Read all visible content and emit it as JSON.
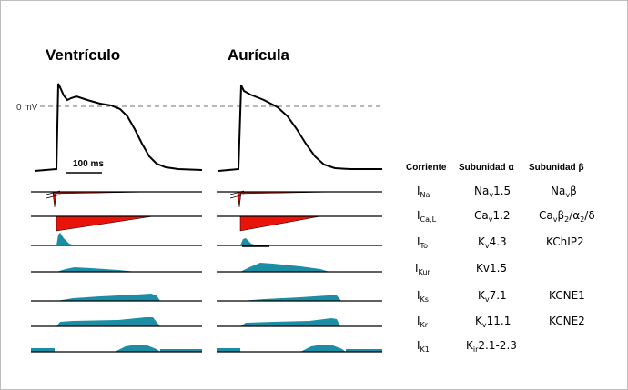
{
  "titles": {
    "left": "Ventrículo",
    "right": "Aurícula"
  },
  "zero_label": "0 mV",
  "scale_label": "100 ms",
  "table_headers": {
    "current": "Corriente",
    "alpha": "Subunidad α",
    "beta": "Subunidad β"
  },
  "rows": [
    {
      "cur_main": "I",
      "cur_sub": "Na",
      "alpha_main": "Na",
      "alpha_sub": "v",
      "alpha_rest": "1.5",
      "beta": "Navβ"
    },
    {
      "cur_main": "I",
      "cur_sub": "Ca,L",
      "alpha_main": "Ca",
      "alpha_sub": "v",
      "alpha_rest": "1.2",
      "beta": "Cavβ2/α2/δ"
    },
    {
      "cur_main": "I",
      "cur_sub": "To",
      "alpha_main": "K",
      "alpha_sub": "v",
      "alpha_rest": "4.3",
      "beta": "KChIP2"
    },
    {
      "cur_main": "I",
      "cur_sub": "Kur",
      "alpha_main": "Kv",
      "alpha_sub": "",
      "alpha_rest": "1.5",
      "beta": ""
    },
    {
      "cur_main": "I",
      "cur_sub": "Ks",
      "alpha_main": "K",
      "alpha_sub": "v",
      "alpha_rest": "7.1",
      "beta": "KCNE1"
    },
    {
      "cur_main": "I",
      "cur_sub": "Kr",
      "alpha_main": "K",
      "alpha_sub": "v",
      "alpha_rest": "11.1",
      "beta": "KCNE2"
    },
    {
      "cur_main": "I",
      "cur_sub": "K1",
      "alpha_main": "K",
      "alpha_sub": "ir",
      "alpha_rest": "2.1-2.3",
      "beta": ""
    }
  ],
  "colors": {
    "inward": "#e8140a",
    "outward": "#1b8ea6",
    "outline": "#000000",
    "dashed": "#707070"
  }
}
